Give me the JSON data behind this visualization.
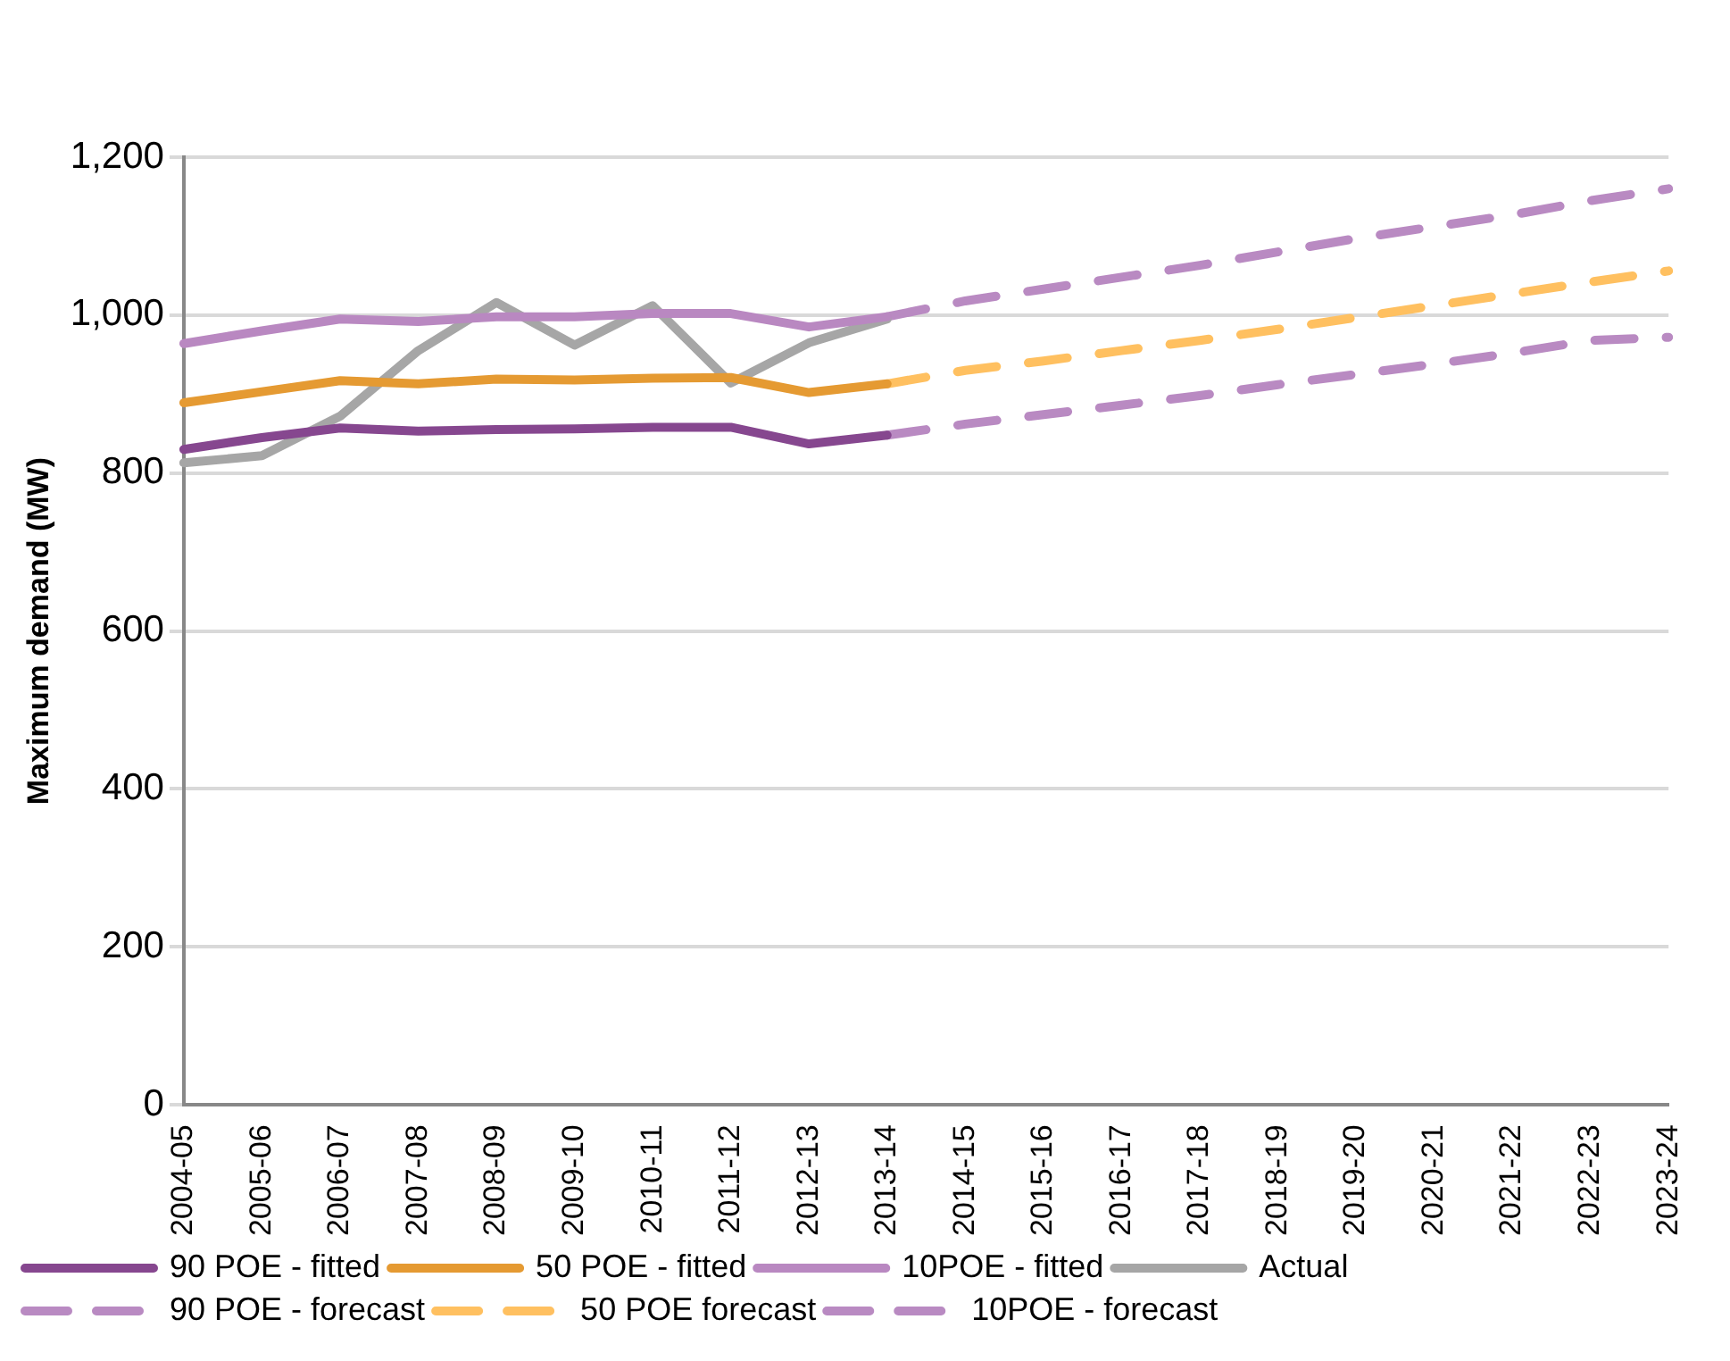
{
  "chart_data": {
    "type": "line",
    "ylabel": "Maximum demand (MW)",
    "categories": [
      "2004-05",
      "2005-06",
      "2006-07",
      "2007-08",
      "2008-09",
      "2009-10",
      "2010-11",
      "2011-12",
      "2012-13",
      "2013-14",
      "2014-15",
      "2015-16",
      "2016-17",
      "2017-18",
      "2018-19",
      "2019-20",
      "2020-21",
      "2021-22",
      "2022-23",
      "2023-24"
    ],
    "series": [
      {
        "name": "90 POE - fitted",
        "color": "#86478f",
        "line_style": "solid",
        "values": [
          830,
          845,
          857,
          853,
          855,
          856,
          858,
          858,
          837,
          848,
          null,
          null,
          null,
          null,
          null,
          null,
          null,
          null,
          null,
          null
        ]
      },
      {
        "name": "50 POE - fitted",
        "color": "#e59a32",
        "line_style": "solid",
        "values": [
          889,
          903,
          917,
          913,
          919,
          918,
          920,
          921,
          902,
          913,
          null,
          null,
          null,
          null,
          null,
          null,
          null,
          null,
          null,
          null
        ]
      },
      {
        "name": "10POE - fitted",
        "color": "#b988c1",
        "line_style": "solid",
        "values": [
          964,
          980,
          995,
          992,
          998,
          998,
          1002,
          1002,
          985,
          998,
          null,
          null,
          null,
          null,
          null,
          null,
          null,
          null,
          null,
          null
        ]
      },
      {
        "name": "Actual",
        "color": "#a6a6a6",
        "line_style": "solid",
        "values": [
          813,
          822,
          872,
          955,
          1016,
          962,
          1012,
          914,
          965,
          995,
          null,
          null,
          null,
          null,
          null,
          null,
          null,
          null,
          null,
          null
        ]
      },
      {
        "name": "90 POE - forecast",
        "color": "#b98ac2",
        "line_style": "dashed",
        "values": [
          null,
          null,
          null,
          null,
          null,
          null,
          null,
          null,
          null,
          848,
          862,
          874,
          886,
          898,
          912,
          925,
          938,
          952,
          968,
          972
        ]
      },
      {
        "name": "50 POE forecast",
        "color": "#ffc060",
        "line_style": "dashed",
        "values": [
          null,
          null,
          null,
          null,
          null,
          null,
          null,
          null,
          null,
          913,
          930,
          942,
          955,
          968,
          982,
          997,
          1012,
          1027,
          1042,
          1056
        ]
      },
      {
        "name": "10POE - forecast",
        "color": "#b98ac2",
        "line_style": "dashed",
        "values": [
          null,
          null,
          null,
          null,
          null,
          null,
          null,
          null,
          null,
          998,
          1018,
          1033,
          1048,
          1063,
          1080,
          1097,
          1112,
          1127,
          1145,
          1160
        ]
      }
    ],
    "ylim": [
      0,
      1200
    ],
    "yticks": [
      0,
      {
        "value": 200,
        "label": "200"
      },
      {
        "value": 400,
        "label": "400"
      },
      {
        "value": 600,
        "label": "600"
      },
      {
        "value": 800,
        "label": "800"
      },
      {
        "value": 1000,
        "label": "1,000"
      },
      {
        "value": 1200,
        "label": "1,200"
      }
    ],
    "grid": "y",
    "legend": "bottom",
    "marker": "none"
  }
}
